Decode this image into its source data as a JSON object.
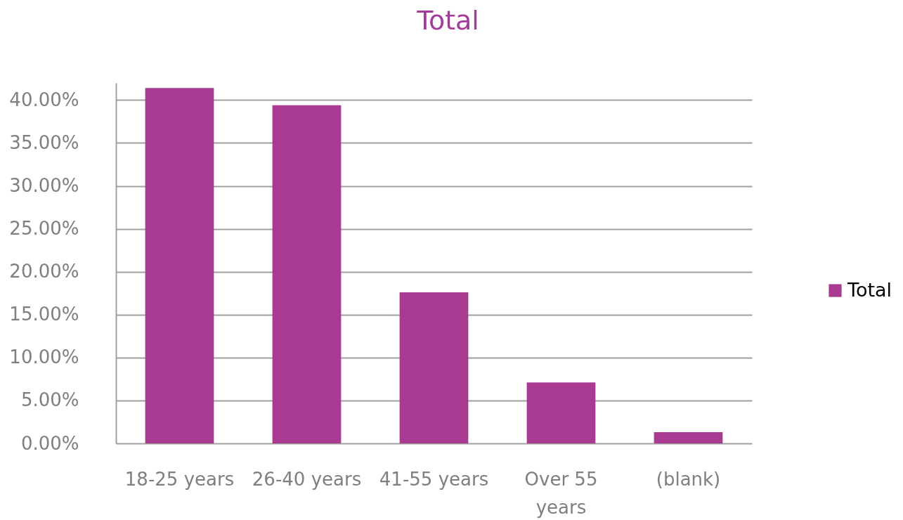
{
  "chart_data": {
    "type": "bar",
    "title": "Total",
    "categories": [
      "18-25 years",
      "26-40 years",
      "41-55 years",
      "Over 55 years",
      "(blank)"
    ],
    "series": [
      {
        "name": "Total",
        "color": "#a93a91",
        "values": [
          41.4,
          39.4,
          17.6,
          7.1,
          1.3
        ]
      }
    ],
    "ylim": [
      0,
      42
    ],
    "yticks": [
      {
        "value": 0,
        "label": "0.00%"
      },
      {
        "value": 5,
        "label": "5.00%"
      },
      {
        "value": 10,
        "label": "10.00%"
      },
      {
        "value": 15,
        "label": "15.00%"
      },
      {
        "value": 20,
        "label": "20.00%"
      },
      {
        "value": 25,
        "label": "25.00%"
      },
      {
        "value": 30,
        "label": "30.00%"
      },
      {
        "value": 35,
        "label": "35.00%"
      },
      {
        "value": 40,
        "label": "40.00%"
      }
    ],
    "grid": "y",
    "legend": "right"
  }
}
